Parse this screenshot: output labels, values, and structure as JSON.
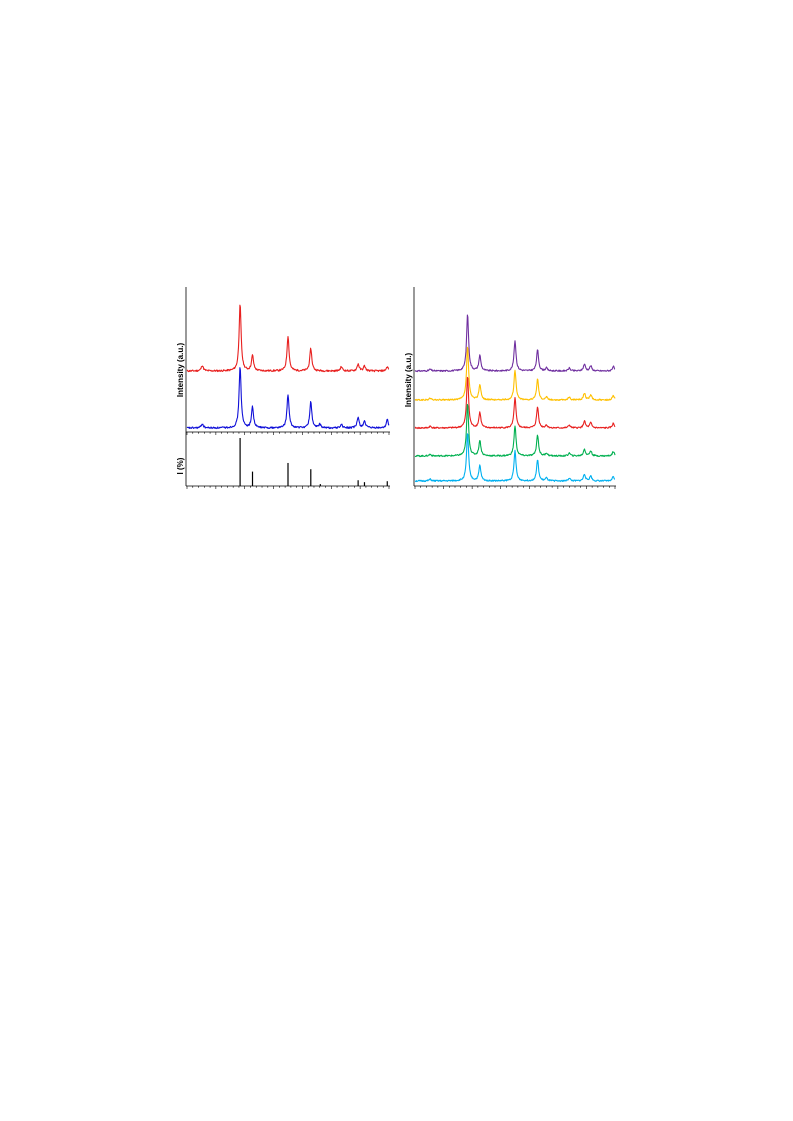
{
  "chart_data": [
    {
      "type": "line",
      "panel": "left-top",
      "ylabel": "Intensity (a.u.)",
      "xlim": [
        10,
        80
      ],
      "ticks": {
        "minor_step": 2,
        "major_step": 10
      },
      "series": [
        {
          "color": "#e8201f",
          "peaks": [
            [
              15.3,
              0.08
            ],
            [
              28.4,
              0.95
            ],
            [
              32.7,
              0.22
            ],
            [
              45.0,
              0.5
            ],
            [
              52.9,
              0.32
            ],
            [
              63.5,
              0.06
            ],
            [
              69.3,
              0.1
            ],
            [
              71.5,
              0.07
            ],
            [
              79.4,
              0.06
            ]
          ]
        },
        {
          "color": "#1010d8",
          "peaks": [
            [
              15.3,
              0.06
            ],
            [
              28.4,
              0.88
            ],
            [
              32.7,
              0.3
            ],
            [
              45.0,
              0.48
            ],
            [
              52.9,
              0.38
            ],
            [
              56.0,
              0.05
            ],
            [
              63.5,
              0.05
            ],
            [
              69.3,
              0.15
            ],
            [
              71.5,
              0.1
            ],
            [
              79.4,
              0.12
            ]
          ]
        }
      ]
    },
    {
      "type": "bar",
      "panel": "left-bottom",
      "ylabel": "I (%)",
      "xlim": [
        10,
        80
      ],
      "ylim": [
        0,
        100
      ],
      "x": [
        28.4,
        32.7,
        45.0,
        52.9,
        56.2,
        69.3,
        71.5,
        79.4
      ],
      "values": [
        100,
        30,
        48,
        35,
        4,
        12,
        8,
        10
      ]
    },
    {
      "type": "line",
      "panel": "right",
      "ylabel": "Intensity (a.u.)",
      "xlim": [
        10,
        80
      ],
      "ticks": {
        "minor_step": 2,
        "major_step": 10
      },
      "series": [
        {
          "color": "#7030a0",
          "peaks": [
            [
              15.3,
              0.03
            ],
            [
              28.4,
              1.0
            ],
            [
              32.7,
              0.27
            ],
            [
              45.0,
              0.53
            ],
            [
              52.9,
              0.37
            ],
            [
              56.0,
              0.05
            ],
            [
              64.0,
              0.05
            ],
            [
              69.3,
              0.12
            ],
            [
              71.5,
              0.09
            ],
            [
              79.4,
              0.08
            ]
          ]
        },
        {
          "color": "#ffc000",
          "peaks": [
            [
              15.3,
              0.03
            ],
            [
              28.4,
              0.95
            ],
            [
              32.7,
              0.27
            ],
            [
              45.0,
              0.53
            ],
            [
              52.9,
              0.37
            ],
            [
              56.0,
              0.05
            ],
            [
              64.0,
              0.05
            ],
            [
              69.3,
              0.12
            ],
            [
              71.5,
              0.09
            ],
            [
              79.4,
              0.08
            ]
          ]
        },
        {
          "color": "#e8201f",
          "peaks": [
            [
              15.3,
              0.03
            ],
            [
              28.4,
              0.92
            ],
            [
              32.7,
              0.27
            ],
            [
              45.0,
              0.53
            ],
            [
              52.9,
              0.37
            ],
            [
              56.0,
              0.05
            ],
            [
              64.0,
              0.05
            ],
            [
              69.3,
              0.12
            ],
            [
              71.5,
              0.09
            ],
            [
              79.4,
              0.08
            ]
          ]
        },
        {
          "color": "#00b050",
          "peaks": [
            [
              15.3,
              0.03
            ],
            [
              28.4,
              0.92
            ],
            [
              32.7,
              0.27
            ],
            [
              45.0,
              0.53
            ],
            [
              52.9,
              0.37
            ],
            [
              56.0,
              0.05
            ],
            [
              64.0,
              0.05
            ],
            [
              69.3,
              0.12
            ],
            [
              71.5,
              0.09
            ],
            [
              79.4,
              0.08
            ]
          ]
        },
        {
          "color": "#00b0f0",
          "peaks": [
            [
              15.3,
              0.03
            ],
            [
              28.4,
              0.85
            ],
            [
              32.7,
              0.27
            ],
            [
              45.0,
              0.53
            ],
            [
              52.9,
              0.37
            ],
            [
              56.0,
              0.05
            ],
            [
              64.0,
              0.05
            ],
            [
              69.3,
              0.12
            ],
            [
              71.5,
              0.09
            ],
            [
              79.4,
              0.08
            ]
          ]
        }
      ]
    }
  ]
}
